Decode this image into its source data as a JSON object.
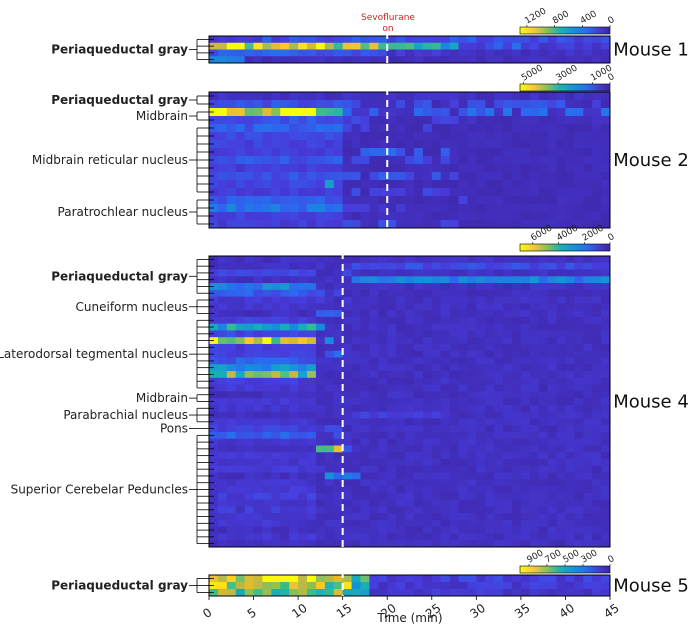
{
  "chart_data": {
    "type": "heatmap",
    "xlabel": "Time (min)",
    "xlim": [
      0,
      45
    ],
    "xticks": [
      0,
      5,
      10,
      15,
      20,
      25,
      30,
      35,
      40,
      45
    ],
    "annotation": {
      "line1": "Sevoflurane",
      "line2": "on",
      "color": "#d42020"
    },
    "colormap": "parula",
    "panels": [
      {
        "label": "Mouse 1",
        "sevo_time": 20,
        "nrows": 4,
        "colorbar": {
          "ticks": [
            "1200",
            "800",
            "400",
            "0"
          ],
          "range": [
            0,
            1300
          ]
        },
        "groups": [
          {
            "name": "Periaqueductal gray",
            "bold": true,
            "rows": [
              0,
              1,
              2,
              3
            ]
          }
        ],
        "rows": [
          {
            "base": 200
          },
          {
            "base": 150,
            "segs": [
              [
                0,
                20,
                1050
              ],
              [
                20,
                28,
                650
              ]
            ],
            "sparse": [
              [
                32,
                36,
                320
              ]
            ]
          },
          {
            "base": 80,
            "segs": [
              [
                0,
                20,
                260
              ]
            ],
            "sparse": [
              [
                20,
                28,
                140
              ]
            ]
          },
          {
            "base": 60,
            "segs": [
              [
                0,
                4,
                420
              ]
            ]
          }
        ]
      },
      {
        "label": "Mouse 2",
        "sevo_time": 20,
        "nrows": 17,
        "colorbar": {
          "ticks": [
            "5000",
            "3000",
            "1000",
            "0"
          ],
          "range": [
            0,
            5200
          ]
        },
        "groups": [
          {
            "name": "Periaqueductal gray",
            "bold": true,
            "rows": [
              0,
              1
            ]
          },
          {
            "name": "Midbrain",
            "bold": false,
            "rows": [
              2,
              3
            ]
          },
          {
            "name": "Midbrain reticular nucleus",
            "bold": false,
            "rows": [
              4,
              5,
              6,
              7,
              8,
              9,
              10,
              11,
              12
            ]
          },
          {
            "name": "Paratrochlear nucleus",
            "bold": false,
            "rows": [
              13,
              14,
              15,
              16
            ]
          }
        ],
        "rows": [
          {
            "base": 300
          },
          {
            "base": 200,
            "segs": [
              [
                0,
                15,
                900
              ]
            ],
            "sparse": [
              [
                15,
                45,
                900
              ]
            ]
          },
          {
            "base": 300,
            "segs": [
              [
                0,
                12,
                4600
              ],
              [
                12,
                15,
                2600
              ]
            ],
            "sparse": [
              [
                15,
                45,
                1300
              ]
            ]
          },
          {
            "base": 250,
            "segs": [
              [
                0,
                15,
                950
              ]
            ],
            "sparse": [
              [
                15,
                28,
                700
              ]
            ]
          },
          {
            "base": 200,
            "segs": [
              [
                0,
                15,
                1100
              ]
            ],
            "sparse": [
              [
                15,
                25,
                600
              ]
            ]
          },
          {
            "base": 200,
            "segs": [
              [
                0,
                15,
                800
              ]
            ]
          },
          {
            "base": 200,
            "segs": [
              [
                0,
                15,
                700
              ]
            ]
          },
          {
            "base": 200,
            "segs": [
              [
                0,
                15,
                600
              ]
            ],
            "sparse": [
              [
                15,
                28,
                1100
              ]
            ]
          },
          {
            "base": 200,
            "segs": [
              [
                0,
                15,
                1000
              ]
            ],
            "sparse": [
              [
                15,
                27,
                800
              ]
            ]
          },
          {
            "base": 200,
            "segs": [
              [
                0,
                15,
                600
              ]
            ]
          },
          {
            "base": 200,
            "segs": [
              [
                0,
                15,
                900
              ]
            ],
            "sparse": [
              [
                15,
                28,
                1000
              ]
            ]
          },
          {
            "base": 200,
            "segs": [
              [
                0,
                15,
                700
              ]
            ],
            "sparse": [
              [
                13,
                15,
                2300
              ]
            ]
          },
          {
            "base": 200,
            "segs": [
              [
                0,
                15,
                600
              ]
            ],
            "sparse": [
              [
                15,
                27,
                700
              ]
            ]
          },
          {
            "base": 200,
            "segs": [
              [
                0,
                15,
                1000
              ]
            ],
            "sparse": [
              [
                27,
                30,
                900
              ]
            ]
          },
          {
            "base": 200,
            "segs": [
              [
                0,
                15,
                1500
              ]
            ],
            "sparse": [
              [
                15,
                25,
                600
              ]
            ]
          },
          {
            "base": 200,
            "segs": [
              [
                0,
                15,
                700
              ]
            ]
          },
          {
            "base": 200,
            "segs": [
              [
                0,
                15,
                600
              ]
            ],
            "sparse": [
              [
                15,
                28,
                800
              ]
            ]
          }
        ]
      },
      {
        "label": "Mouse 4",
        "sevo_time": 15,
        "nrows": 43,
        "colorbar": {
          "ticks": [
            "6000",
            "4000",
            "2000",
            "0"
          ],
          "range": [
            0,
            7000
          ]
        },
        "groups": [
          {
            "name": "Periaqueductal gray",
            "bold": true,
            "rows": [
              0,
              1,
              2,
              3,
              4,
              5
            ]
          },
          {
            "name": "Cuneiform nucleus",
            "bold": false,
            "rows": [
              6,
              7,
              8
            ]
          },
          {
            "name": "Laterodorsal tegmental nucleus",
            "bold": false,
            "rows": [
              9,
              10,
              11,
              12,
              13,
              14,
              15,
              16,
              17,
              18,
              19
            ]
          },
          {
            "name": "Midbrain",
            "bold": false,
            "rows": [
              20,
              21
            ]
          },
          {
            "name": "Parabrachial nucleus",
            "bold": false,
            "rows": [
              22,
              23,
              24
            ]
          },
          {
            "name": "Pons",
            "bold": false,
            "rows": [
              25
            ]
          },
          {
            "name": "Superior Cerebelar Peduncles",
            "bold": false,
            "rows": [
              26,
              27,
              28,
              29,
              30,
              31,
              32,
              33,
              34,
              35,
              36,
              37,
              38,
              39,
              40,
              41,
              42
            ]
          }
        ],
        "rows": [
          {
            "base": 400
          },
          {
            "base": 400,
            "segs": [
              [
                16,
                45,
                1100
              ]
            ]
          },
          {
            "base": 400,
            "segs": [
              [
                0,
                12,
                1000
              ]
            ],
            "sparse": [
              [
                12,
                16,
                900
              ]
            ]
          },
          {
            "base": 400,
            "segs": [
              [
                16,
                45,
                2300
              ]
            ]
          },
          {
            "base": 400,
            "segs": [
              [
                0,
                12,
                2400
              ]
            ]
          },
          {
            "base": 400,
            "segs": [
              [
                0,
                12,
                1400
              ]
            ],
            "sparse": [
              [
                12,
                15,
                1000
              ]
            ]
          },
          {
            "base": 400,
            "segs": [
              [
                0,
                12,
                700
              ]
            ],
            "sparse": [
              [
                12,
                16,
                700
              ]
            ]
          },
          {
            "base": 400,
            "segs": [
              [
                0,
                12,
                600
              ]
            ]
          },
          {
            "base": 400,
            "segs": [
              [
                12,
                15,
                1600
              ]
            ]
          },
          {
            "base": 400,
            "segs": [
              [
                0,
                12,
                900
              ]
            ],
            "sparse": [
              [
                12,
                15,
                1800
              ]
            ]
          },
          {
            "base": 400,
            "segs": [
              [
                0,
                12,
                3300
              ]
            ],
            "sparse": [
              [
                12,
                14,
                2400
              ]
            ]
          },
          {
            "base": 400,
            "segs": [
              [
                0,
                12,
                1000
              ]
            ]
          },
          {
            "base": 400,
            "segs": [
              [
                0,
                12,
                5600
              ]
            ],
            "sparse": [
              [
                12,
                14,
                3000
              ]
            ]
          },
          {
            "base": 400,
            "segs": [
              [
                0,
                12,
                800
              ]
            ]
          },
          {
            "base": 400,
            "segs": [
              [
                0,
                12,
                900
              ]
            ],
            "sparse": [
              [
                12,
                15,
                1500
              ]
            ]
          },
          {
            "base": 400,
            "segs": [
              [
                0,
                12,
                1500
              ]
            ]
          },
          {
            "base": 400,
            "segs": [
              [
                0,
                12,
                2600
              ]
            ]
          },
          {
            "base": 400,
            "segs": [
              [
                0,
                12,
                4600
              ]
            ],
            "sparse": [
              [
                0,
                4,
                2800
              ]
            ]
          },
          {
            "base": 400,
            "segs": [
              [
                0,
                12,
                800
              ]
            ]
          },
          {
            "base": 400,
            "segs": [
              [
                0,
                12,
                700
              ]
            ]
          },
          {
            "base": 400
          },
          {
            "base": 400,
            "segs": [
              [
                0,
                12,
                700
              ]
            ]
          },
          {
            "base": 400,
            "segs": [
              [
                0,
                12,
                600
              ]
            ]
          },
          {
            "base": 400,
            "segs": [
              [
                16,
                26,
                900
              ]
            ]
          },
          {
            "base": 400,
            "segs": [
              [
                0,
                12,
                700
              ]
            ]
          },
          {
            "base": 400,
            "segs": [
              [
                0,
                15,
                900
              ]
            ]
          },
          {
            "base": 400,
            "segs": [
              [
                0,
                12,
                1700
              ]
            ],
            "sparse": [
              [
                12,
                15,
                1300
              ]
            ]
          },
          {
            "base": 400,
            "segs": [
              [
                0,
                12,
                600
              ]
            ]
          },
          {
            "base": 400,
            "segs": [
              [
                12,
                15,
                5200
              ],
              [
                15,
                16,
                1800
              ]
            ]
          },
          {
            "base": 400,
            "segs": [
              [
                0,
                12,
                700
              ]
            ]
          },
          {
            "base": 400,
            "segs": [
              [
                0,
                12,
                600
              ]
            ]
          },
          {
            "base": 400,
            "segs": [
              [
                0,
                12,
                800
              ]
            ],
            "sparse": [
              [
                12,
                16,
                900
              ]
            ]
          },
          {
            "base": 400,
            "segs": [
              [
                13,
                17,
                2200
              ]
            ]
          },
          {
            "base": 400,
            "segs": [
              [
                0,
                12,
                600
              ]
            ]
          },
          {
            "base": 400,
            "segs": [
              [
                0,
                12,
                700
              ]
            ]
          },
          {
            "base": 400,
            "sparse": [
              [
                0,
                12,
                900
              ]
            ]
          },
          {
            "base": 400,
            "segs": [
              [
                0,
                12,
                600
              ]
            ]
          },
          {
            "base": 400,
            "sparse": [
              [
                0,
                12,
                800
              ]
            ]
          },
          {
            "base": 400,
            "segs": [
              [
                0,
                12,
                600
              ]
            ]
          },
          {
            "base": 400,
            "sparse": [
              [
                0,
                12,
                700
              ]
            ]
          },
          {
            "base": 400
          },
          {
            "base": 400,
            "sparse": [
              [
                0,
                12,
                700
              ]
            ]
          },
          {
            "base": 400
          }
        ]
      },
      {
        "label": "Mouse 5",
        "sevo_time": 15,
        "nrows": 3,
        "colorbar": {
          "ticks": [
            "900",
            "700",
            "500",
            "300",
            "0"
          ],
          "range": [
            0,
            1000
          ]
        },
        "groups": [
          {
            "name": "Periaqueductal gray",
            "bold": true,
            "rows": [
              0,
              1,
              2
            ]
          }
        ],
        "rows": [
          {
            "base": 120,
            "segs": [
              [
                0,
                16,
                880
              ],
              [
                16,
                18,
                550
              ]
            ]
          },
          {
            "base": 100,
            "segs": [
              [
                0,
                16,
                760
              ],
              [
                16,
                18,
                500
              ]
            ]
          },
          {
            "base": 90,
            "segs": [
              [
                0,
                16,
                650
              ],
              [
                16,
                18,
                420
              ]
            ]
          }
        ]
      }
    ]
  }
}
